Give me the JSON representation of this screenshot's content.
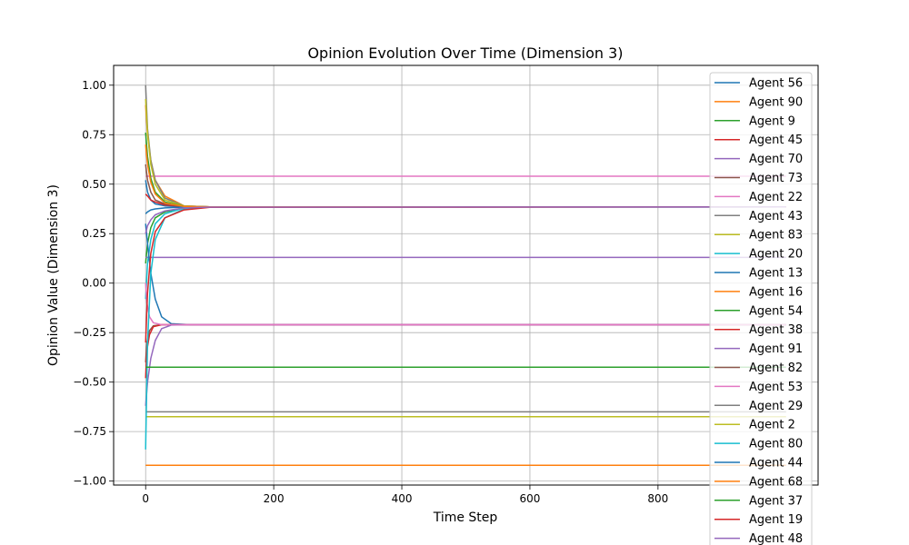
{
  "chart_data": {
    "type": "line",
    "title": "Opinion Evolution Over Time (Dimension 3)",
    "xlabel": "Time Step",
    "ylabel": "Opinion Value (Dimension 3)",
    "xlim": [
      -50,
      1050
    ],
    "ylim": [
      -1.02,
      1.1
    ],
    "xticks": [
      0,
      200,
      400,
      600,
      800
    ],
    "yticks": [
      -1.0,
      -0.75,
      -0.5,
      -0.25,
      0.0,
      0.25,
      0.5,
      0.75,
      1.0
    ],
    "ytick_labels": [
      "−1.00",
      "−0.75",
      "−0.50",
      "−0.25",
      "0.00",
      "0.25",
      "0.50",
      "0.75",
      "1.00"
    ],
    "grid": true,
    "legend_position": "upper right",
    "series": [
      {
        "name": "Agent 56",
        "color": "#1f77b4",
        "x": [
          0,
          3,
          8,
          15,
          30,
          60,
          100,
          1000
        ],
        "y": [
          0.52,
          0.46,
          0.42,
          0.4,
          0.39,
          0.385,
          0.385,
          0.385
        ]
      },
      {
        "name": "Agent 90",
        "color": "#ff7f0e",
        "x": [
          0,
          3,
          8,
          15,
          30,
          60,
          100,
          1000
        ],
        "y": [
          0.9,
          0.75,
          0.62,
          0.52,
          0.44,
          0.39,
          0.385,
          0.385
        ]
      },
      {
        "name": "Agent 9",
        "color": "#2ca02c",
        "x": [
          0,
          3,
          8,
          15,
          30,
          60,
          100,
          1000
        ],
        "y": [
          0.1,
          0.2,
          0.28,
          0.33,
          0.36,
          0.38,
          0.385,
          0.385
        ]
      },
      {
        "name": "Agent 45",
        "color": "#d62728",
        "x": [
          0,
          3,
          8,
          15,
          30,
          60,
          100,
          1000
        ],
        "y": [
          0.45,
          0.44,
          0.42,
          0.41,
          0.395,
          0.387,
          0.385,
          0.385
        ]
      },
      {
        "name": "Agent 70",
        "color": "#9467bd",
        "x": [
          0,
          1000
        ],
        "y": [
          0.13,
          0.13
        ]
      },
      {
        "name": "Agent 73",
        "color": "#8c564b",
        "x": [
          0,
          2,
          6,
          12,
          25,
          60,
          1000
        ],
        "y": [
          -0.4,
          -0.3,
          -0.24,
          -0.215,
          -0.21,
          -0.21,
          -0.21
        ]
      },
      {
        "name": "Agent 22",
        "color": "#e377c2",
        "x": [
          0,
          1000
        ],
        "y": [
          0.54,
          0.54
        ]
      },
      {
        "name": "Agent 43",
        "color": "#7f7f7f",
        "x": [
          0,
          3,
          8,
          15,
          30,
          60,
          100,
          1000
        ],
        "y": [
          1.0,
          0.78,
          0.62,
          0.52,
          0.43,
          0.39,
          0.385,
          0.385
        ]
      },
      {
        "name": "Agent 83",
        "color": "#bcbd22",
        "x": [
          0,
          3,
          8,
          15,
          30,
          60,
          100,
          1000
        ],
        "y": [
          0.93,
          0.76,
          0.6,
          0.5,
          0.42,
          0.39,
          0.385,
          0.385
        ]
      },
      {
        "name": "Agent 20",
        "color": "#17becf",
        "x": [
          0,
          3,
          8,
          15,
          30,
          60,
          100,
          1000
        ],
        "y": [
          -0.08,
          0.1,
          0.22,
          0.3,
          0.35,
          0.38,
          0.385,
          0.385
        ]
      },
      {
        "name": "Agent 13",
        "color": "#1f77b4",
        "x": [
          0,
          3,
          8,
          15,
          25,
          40,
          70,
          1000
        ],
        "y": [
          0.3,
          0.2,
          0.05,
          -0.08,
          -0.17,
          -0.205,
          -0.21,
          -0.21
        ]
      },
      {
        "name": "Agent 16",
        "color": "#ff7f0e",
        "x": [
          0,
          1000
        ],
        "y": [
          -0.92,
          -0.92
        ]
      },
      {
        "name": "Agent 54",
        "color": "#2ca02c",
        "x": [
          0,
          3,
          8,
          15,
          30,
          60,
          100,
          1000
        ],
        "y": [
          0.76,
          0.64,
          0.53,
          0.46,
          0.41,
          0.388,
          0.385,
          0.385
        ]
      },
      {
        "name": "Agent 38",
        "color": "#d62728",
        "x": [
          0,
          2,
          6,
          12,
          25,
          60,
          1000
        ],
        "y": [
          -0.48,
          -0.34,
          -0.26,
          -0.22,
          -0.21,
          -0.21,
          -0.21
        ]
      },
      {
        "name": "Agent 91",
        "color": "#9467bd",
        "x": [
          0,
          3,
          8,
          15,
          25,
          40,
          70,
          1000
        ],
        "y": [
          -0.62,
          -0.5,
          -0.38,
          -0.29,
          -0.23,
          -0.212,
          -0.21,
          -0.21
        ]
      },
      {
        "name": "Agent 82",
        "color": "#8c564b",
        "x": [
          0,
          3,
          8,
          15,
          30,
          60,
          100,
          1000
        ],
        "y": [
          0.6,
          0.52,
          0.46,
          0.42,
          0.4,
          0.387,
          0.385,
          0.385
        ]
      },
      {
        "name": "Agent 53",
        "color": "#e377c2",
        "x": [
          0,
          2,
          6,
          12,
          25,
          60,
          1000
        ],
        "y": [
          0.0,
          -0.1,
          -0.17,
          -0.2,
          -0.21,
          -0.21,
          -0.21
        ]
      },
      {
        "name": "Agent 29",
        "color": "#7f7f7f",
        "x": [
          0,
          1000
        ],
        "y": [
          -0.65,
          -0.65
        ]
      },
      {
        "name": "Agent 2",
        "color": "#bcbd22",
        "x": [
          0,
          1000
        ],
        "y": [
          -0.675,
          -0.675
        ]
      },
      {
        "name": "Agent 80",
        "color": "#17becf",
        "x": [
          0,
          3,
          8,
          15,
          30,
          60,
          100,
          1000
        ],
        "y": [
          -0.84,
          -0.3,
          0.05,
          0.22,
          0.33,
          0.375,
          0.384,
          0.385
        ]
      },
      {
        "name": "Agent 44",
        "color": "#1f77b4",
        "x": [
          0,
          3,
          8,
          15,
          30,
          60,
          100,
          1000
        ],
        "y": [
          0.35,
          0.36,
          0.37,
          0.375,
          0.38,
          0.384,
          0.385,
          0.385
        ]
      },
      {
        "name": "Agent 68",
        "color": "#ff7f0e",
        "x": [
          0,
          3,
          8,
          15,
          30,
          60,
          100,
          1000
        ],
        "y": [
          0.7,
          0.6,
          0.51,
          0.45,
          0.405,
          0.388,
          0.385,
          0.385
        ]
      },
      {
        "name": "Agent 37",
        "color": "#2ca02c",
        "x": [
          0,
          1000
        ],
        "y": [
          -0.425,
          -0.425
        ]
      },
      {
        "name": "Agent 19",
        "color": "#d62728",
        "x": [
          0,
          3,
          8,
          15,
          30,
          60,
          100,
          1000
        ],
        "y": [
          -0.3,
          -0.05,
          0.15,
          0.26,
          0.33,
          0.37,
          0.383,
          0.385
        ]
      },
      {
        "name": "Agent 48",
        "color": "#9467bd",
        "x": [
          0,
          3,
          8,
          15,
          30,
          60,
          100,
          1000
        ],
        "y": [
          0.25,
          0.29,
          0.32,
          0.345,
          0.365,
          0.38,
          0.384,
          0.385
        ]
      }
    ]
  }
}
